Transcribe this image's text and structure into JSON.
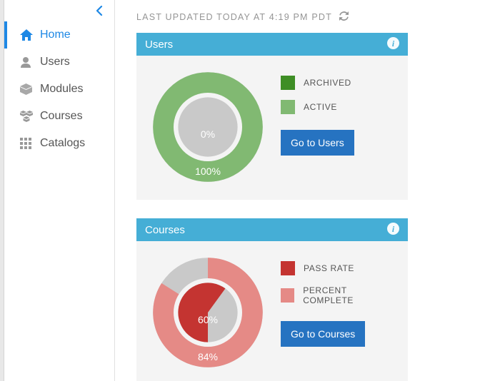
{
  "updated": {
    "text": "LAST UPDATED TODAY AT 4:19 PM PDT"
  },
  "sidebar": {
    "items": [
      {
        "label": "Home"
      },
      {
        "label": "Users"
      },
      {
        "label": "Modules"
      },
      {
        "label": "Courses"
      },
      {
        "label": "Catalogs"
      }
    ]
  },
  "cards": {
    "users": {
      "title": "Users",
      "chart": {
        "type": "donut-double",
        "outer_percent": 100,
        "inner_percent": 0,
        "outer_label": "100%",
        "inner_label": "0%",
        "outer_color": "#81b972",
        "inner_fill_color": "#3e8e25",
        "track_color": "#c9c9c9",
        "center_text_color": "#ffffff"
      },
      "legend": [
        {
          "label": "ARCHIVED",
          "color": "#3e8e25"
        },
        {
          "label": "ACTIVE",
          "color": "#81b972"
        }
      ],
      "button": "Go to Users"
    },
    "courses": {
      "title": "Courses",
      "chart": {
        "type": "donut-double",
        "outer_percent": 84,
        "inner_percent": 60,
        "outer_label": "84%",
        "inner_label": "60%",
        "outer_color": "#e58a86",
        "inner_fill_color": "#c43431",
        "track_color": "#c9c9c9",
        "center_text_color": "#ffffff"
      },
      "legend": [
        {
          "label": "PASS RATE",
          "color": "#c43431"
        },
        {
          "label": "PERCENT COMPLETE",
          "color": "#e58a86"
        }
      ],
      "button": "Go to Courses"
    }
  },
  "colors": {
    "accent": "#1e88e5",
    "header_bar": "#45aed6",
    "button": "#2673c1",
    "sidebar_icon": "#999999",
    "muted_text": "#959595"
  }
}
